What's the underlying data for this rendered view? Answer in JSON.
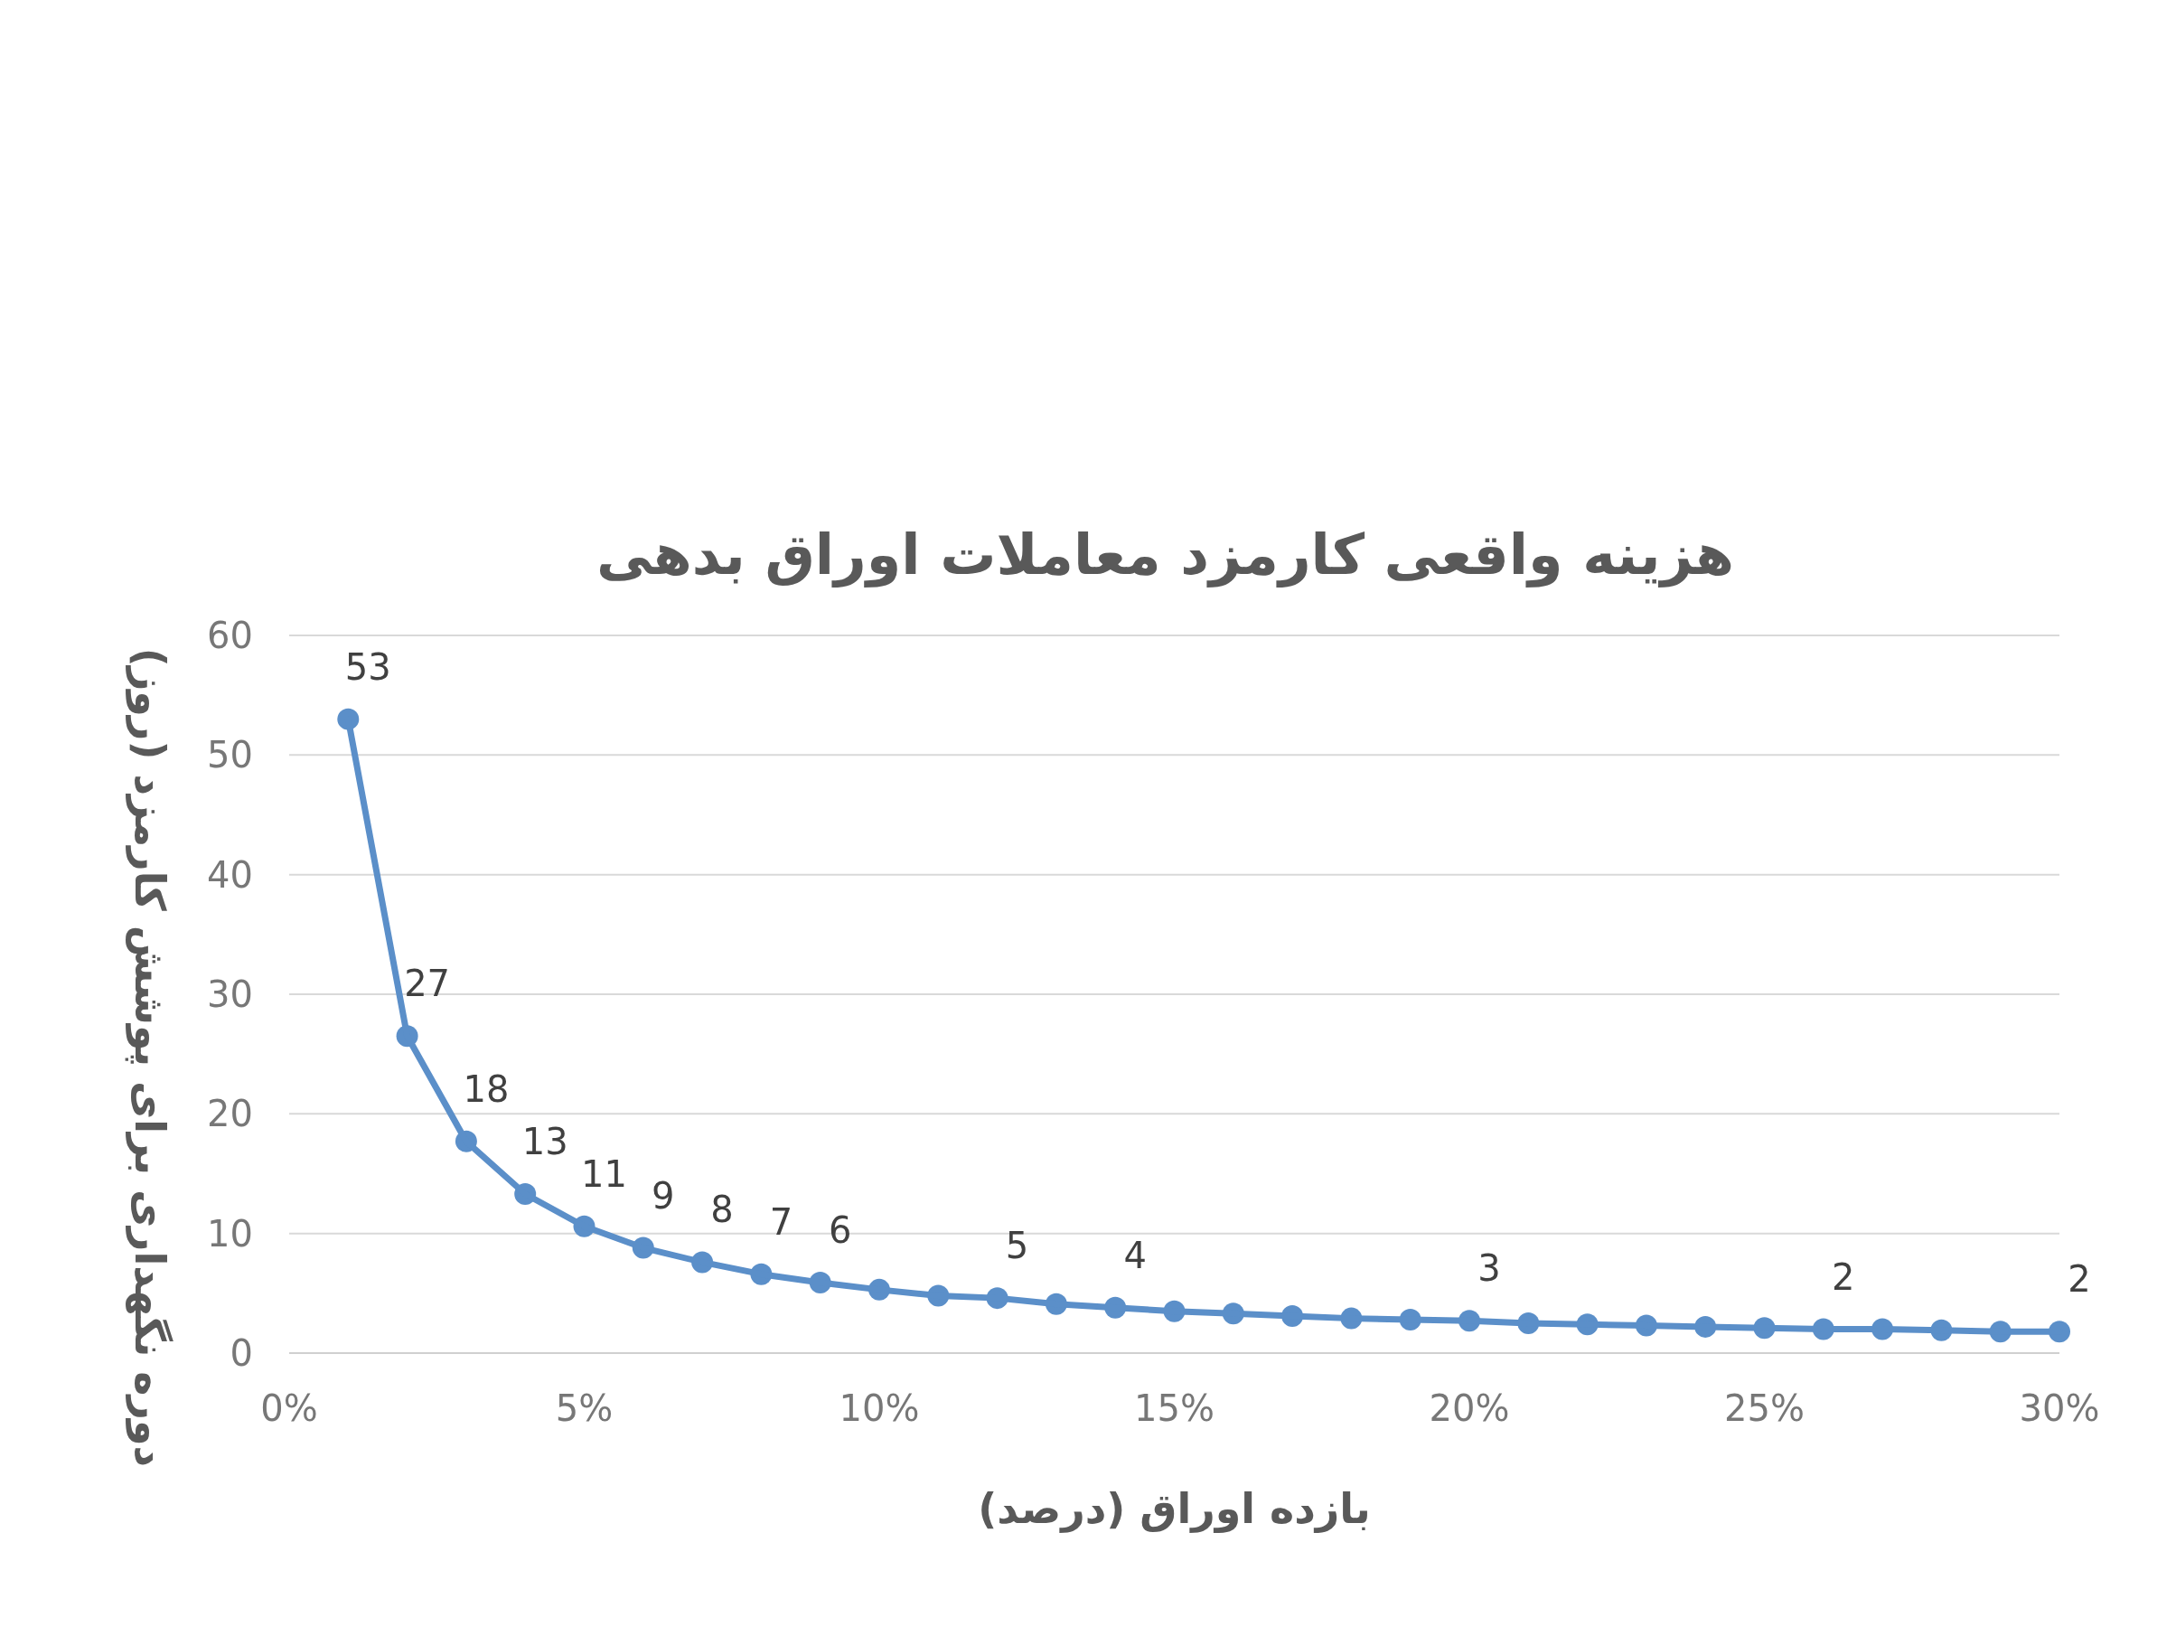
{
  "chart_data": {
    "type": "line",
    "title": "هزینه واقعی کارمزد معاملات اوراق بدهی",
    "xlabel": "بازده اوراق (درصد)",
    "ylabel": "دوره نگهداری برای پوشش کارمزد (روز)",
    "x": [
      1,
      2,
      3,
      4,
      5,
      6,
      7,
      8,
      9,
      10,
      11,
      12,
      13,
      14,
      15,
      16,
      17,
      18,
      19,
      20,
      21,
      22,
      23,
      24,
      25,
      26,
      27,
      28,
      29,
      30
    ],
    "series": [
      {
        "color": "#5b8fc9",
        "values": [
          53,
          26.5,
          17.7,
          13.3,
          10.6,
          8.8,
          7.6,
          6.6,
          5.9,
          5.3,
          4.8,
          4.6,
          4.1,
          3.8,
          3.5,
          3.3,
          3.1,
          2.9,
          2.8,
          2.7,
          2.5,
          2.4,
          2.3,
          2.2,
          2.1,
          2.0,
          2.0,
          1.9,
          1.8,
          1.8
        ],
        "value_labels": [
          "53",
          "27",
          "18",
          "13",
          "11",
          "9",
          "8",
          "7",
          "6",
          null,
          null,
          "5",
          null,
          "4",
          null,
          null,
          null,
          null,
          null,
          "3",
          null,
          null,
          null,
          null,
          null,
          "2",
          null,
          null,
          null,
          "2"
        ]
      }
    ],
    "xlim": [
      0,
      30
    ],
    "xticks": [
      {
        "value": 0,
        "label": "0%"
      },
      {
        "value": 5,
        "label": "5%"
      },
      {
        "value": 10,
        "label": "10%"
      },
      {
        "value": 15,
        "label": "15%"
      },
      {
        "value": 20,
        "label": "20%"
      },
      {
        "value": 25,
        "label": "25%"
      },
      {
        "value": 30,
        "label": "30%"
      }
    ],
    "ylim": [
      0,
      60
    ],
    "yticks": [
      0,
      10,
      20,
      30,
      40,
      50,
      60
    ],
    "grid": "y",
    "marker": "circle",
    "line_style": "solid"
  }
}
